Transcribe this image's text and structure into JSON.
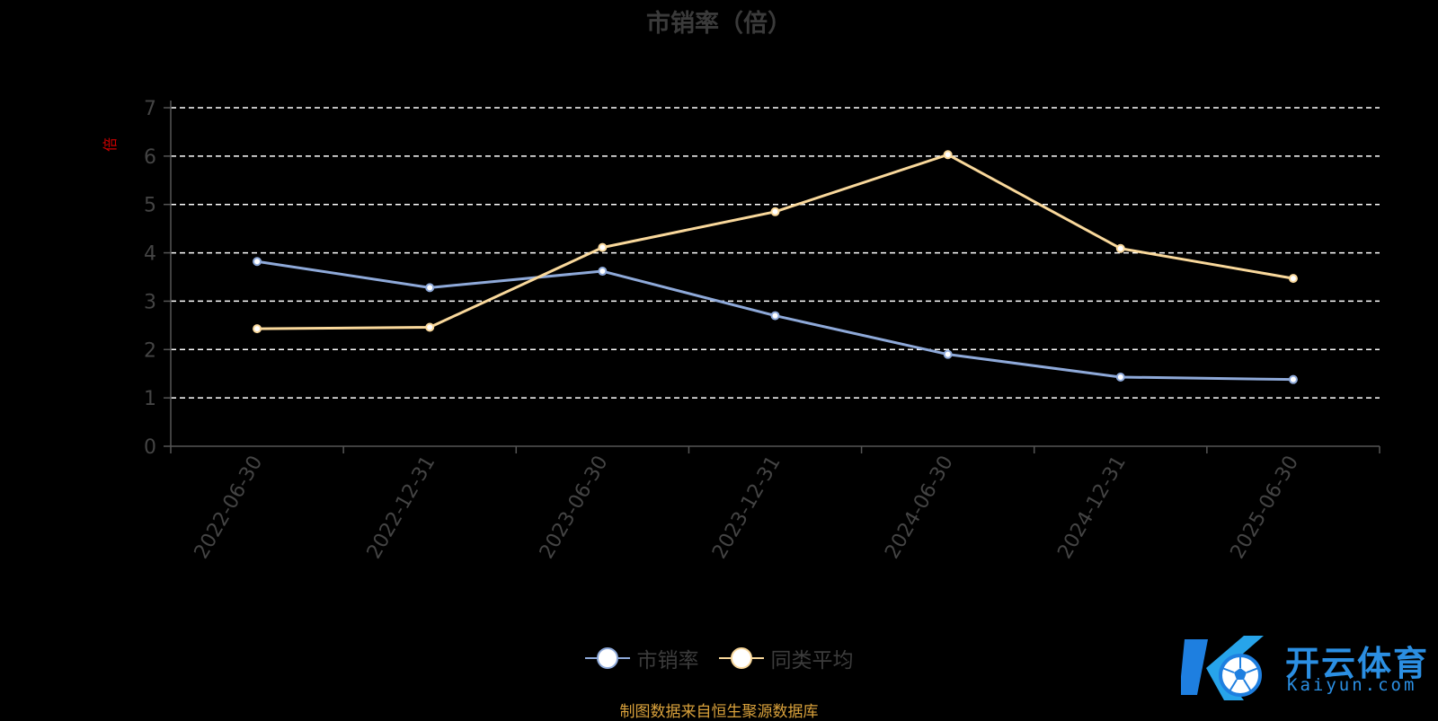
{
  "chart_data": {
    "type": "line",
    "title": "市销率（倍）",
    "ylabel": "倍",
    "categories": [
      "2022-06-30",
      "2022-12-31",
      "2023-06-30",
      "2023-12-31",
      "2024-06-30",
      "2024-12-31",
      "2025-06-30"
    ],
    "ylim": [
      0,
      7
    ],
    "yticks": [
      0,
      1,
      2,
      3,
      4,
      5,
      6,
      7
    ],
    "grid": "dashed horizontal",
    "legend_position": "bottom",
    "series": [
      {
        "name": "市销率",
        "color": "#8ea9d9",
        "values": [
          3.82,
          3.28,
          3.62,
          2.7,
          1.9,
          1.43,
          1.38
        ]
      },
      {
        "name": "同类平均",
        "color": "#f9d89b",
        "values": [
          2.43,
          2.46,
          4.11,
          4.85,
          6.03,
          4.09,
          3.47
        ]
      }
    ]
  },
  "colors": {
    "background": "#000000",
    "ylabel": "#cc0000",
    "grid": "#ffffff",
    "source_note": "#d9a13b",
    "logo": "#2b8fe3"
  },
  "footer": {
    "source_note": "制图数据来自恒生聚源数据库"
  },
  "logo": {
    "brand_text": "开云体育",
    "url_text": "Kaiyun.com",
    "icon": "soccer-ball-k-logo-icon"
  }
}
